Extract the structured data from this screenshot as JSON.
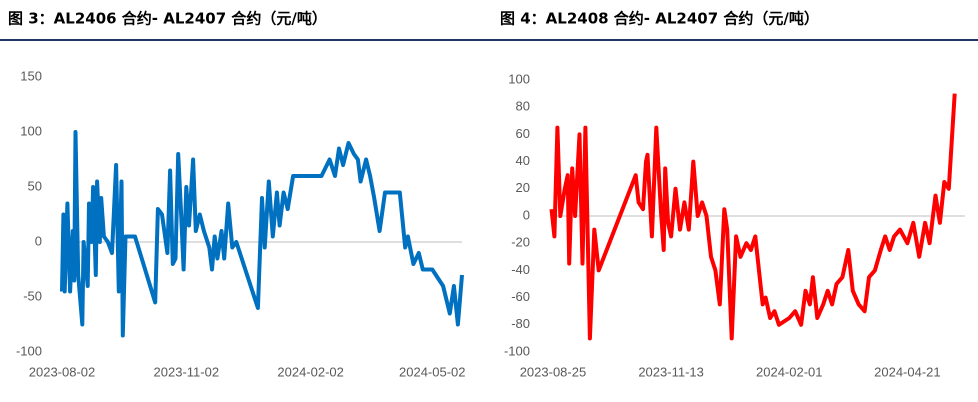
{
  "chart_data": [
    {
      "type": "line",
      "title": "图 3：AL2406 合约- AL2407 合约（元/吨）",
      "color": "#0070c0",
      "x": [
        "2023-08-02",
        "2023-08-03",
        "2023-08-04",
        "2023-08-06",
        "2023-08-08",
        "2023-08-10",
        "2023-08-11",
        "2023-08-12",
        "2023-08-14",
        "2023-08-17",
        "2023-08-18",
        "2023-08-21",
        "2023-08-22",
        "2023-08-24",
        "2023-08-25",
        "2023-08-27",
        "2023-08-28",
        "2023-08-30",
        "2023-08-31",
        "2023-09-02",
        "2023-09-05",
        "2023-09-08",
        "2023-09-11",
        "2023-09-13",
        "2023-09-15",
        "2023-09-16",
        "2023-09-18",
        "2023-09-25",
        "2023-10-10",
        "2023-10-12",
        "2023-10-15",
        "2023-10-19",
        "2023-10-21",
        "2023-10-23",
        "2023-10-25",
        "2023-10-27",
        "2023-10-29",
        "2023-10-31",
        "2023-11-02",
        "2023-11-04",
        "2023-11-07",
        "2023-11-09",
        "2023-11-12",
        "2023-11-15",
        "2023-11-19",
        "2023-11-21",
        "2023-11-23",
        "2023-11-25",
        "2023-11-28",
        "2023-11-30",
        "2023-12-03",
        "2023-12-06",
        "2023-12-09",
        "2023-12-25",
        "2023-12-28",
        "2023-12-30",
        "2024-01-02",
        "2024-01-05",
        "2024-01-08",
        "2024-01-10",
        "2024-01-13",
        "2024-01-16",
        "2024-01-20",
        "2024-02-02",
        "2024-02-10",
        "2024-02-16",
        "2024-02-20",
        "2024-02-23",
        "2024-02-26",
        "2024-03-01",
        "2024-03-05",
        "2024-03-08",
        "2024-03-10",
        "2024-03-14",
        "2024-03-17",
        "2024-03-20",
        "2024-03-24",
        "2024-03-28",
        "2024-04-08",
        "2024-04-12",
        "2024-04-14",
        "2024-04-18",
        "2024-04-22",
        "2024-04-25",
        "2024-05-02",
        "2024-05-10",
        "2024-05-15",
        "2024-05-18",
        "2024-05-21",
        "2024-05-24"
      ],
      "values": [
        -45,
        25,
        -45,
        35,
        -45,
        10,
        -35,
        100,
        -30,
        -75,
        0,
        -40,
        35,
        0,
        50,
        -30,
        55,
        0,
        40,
        5,
        0,
        -10,
        70,
        -45,
        55,
        -85,
        5,
        5,
        -55,
        30,
        25,
        -10,
        65,
        -20,
        -15,
        80,
        30,
        -25,
        50,
        15,
        75,
        10,
        25,
        10,
        -5,
        -25,
        5,
        -15,
        10,
        -15,
        35,
        -5,
        0,
        -60,
        40,
        -5,
        55,
        5,
        45,
        15,
        45,
        30,
        60,
        60,
        60,
        75,
        60,
        85,
        70,
        90,
        80,
        75,
        55,
        75,
        60,
        40,
        10,
        45,
        45,
        -5,
        5,
        -20,
        -10,
        -25,
        -25,
        -40,
        -65,
        -40,
        -75,
        -30
      ],
      "xlim": [
        "2023-08-02",
        "2024-05-24"
      ],
      "xticks": [
        "2023-08-02",
        "2023-11-02",
        "2024-02-02",
        "2024-05-02"
      ],
      "ylim": [
        -100,
        150
      ],
      "yticks": [
        -100,
        -50,
        0,
        50,
        100,
        150
      ]
    },
    {
      "type": "line",
      "title": "图 4：AL2408 合约- AL2407 合约（元/吨）",
      "color": "#ff0000",
      "x": [
        "2023-08-24",
        "2023-08-26",
        "2023-08-28",
        "2023-08-30",
        "2023-09-02",
        "2023-09-04",
        "2023-09-05",
        "2023-09-07",
        "2023-09-09",
        "2023-09-12",
        "2023-09-14",
        "2023-09-16",
        "2023-09-19",
        "2023-09-22",
        "2023-09-25",
        "2023-10-20",
        "2023-10-22",
        "2023-10-25",
        "2023-10-27",
        "2023-10-28",
        "2023-10-31",
        "2023-11-03",
        "2023-11-06",
        "2023-11-08",
        "2023-11-09",
        "2023-11-11",
        "2023-11-13",
        "2023-11-16",
        "2023-11-19",
        "2023-11-22",
        "2023-11-25",
        "2023-11-28",
        "2023-12-01",
        "2023-12-04",
        "2023-12-07",
        "2023-12-10",
        "2023-12-13",
        "2023-12-16",
        "2023-12-19",
        "2023-12-21",
        "2023-12-24",
        "2023-12-27",
        "2023-12-30",
        "2024-01-03",
        "2024-01-06",
        "2024-01-09",
        "2024-01-12",
        "2024-01-14",
        "2024-01-16",
        "2024-01-19",
        "2024-01-22",
        "2024-01-25",
        "2024-02-01",
        "2024-02-05",
        "2024-02-09",
        "2024-02-12",
        "2024-02-15",
        "2024-02-17",
        "2024-02-20",
        "2024-02-24",
        "2024-02-27",
        "2024-03-01",
        "2024-03-04",
        "2024-03-08",
        "2024-03-12",
        "2024-03-15",
        "2024-03-19",
        "2024-03-23",
        "2024-03-26",
        "2024-03-30",
        "2024-04-03",
        "2024-04-06",
        "2024-04-09",
        "2024-04-12",
        "2024-04-16",
        "2024-04-21",
        "2024-04-25",
        "2024-04-29",
        "2024-05-03",
        "2024-05-06",
        "2024-05-10",
        "2024-05-13",
        "2024-05-16",
        "2024-05-19",
        "2024-05-23"
      ],
      "values": [
        5,
        -15,
        65,
        0,
        20,
        30,
        -35,
        35,
        0,
        60,
        -35,
        65,
        -90,
        -10,
        -40,
        30,
        10,
        5,
        40,
        45,
        -15,
        65,
        5,
        -25,
        35,
        -5,
        -15,
        20,
        -10,
        10,
        -10,
        40,
        0,
        10,
        0,
        -30,
        -40,
        -65,
        5,
        -10,
        -90,
        -15,
        -30,
        -20,
        -25,
        -15,
        -45,
        -65,
        -60,
        -75,
        -70,
        -80,
        -75,
        -70,
        -80,
        -55,
        -65,
        -45,
        -75,
        -65,
        -55,
        -65,
        -50,
        -45,
        -25,
        -55,
        -65,
        -70,
        -45,
        -40,
        -25,
        -15,
        -25,
        -15,
        -10,
        -20,
        -5,
        -30,
        -5,
        -20,
        15,
        -5,
        25,
        20,
        90
      ],
      "xlim": [
        "2023-08-23",
        "2024-05-30"
      ],
      "xticks": [
        "2023-08-25",
        "2023-11-13",
        "2024-02-01",
        "2024-04-21"
      ],
      "ylim": [
        -100,
        100
      ],
      "yticks": [
        -100,
        -80,
        -60,
        -40,
        -20,
        0,
        20,
        40,
        60,
        80,
        100
      ]
    }
  ]
}
